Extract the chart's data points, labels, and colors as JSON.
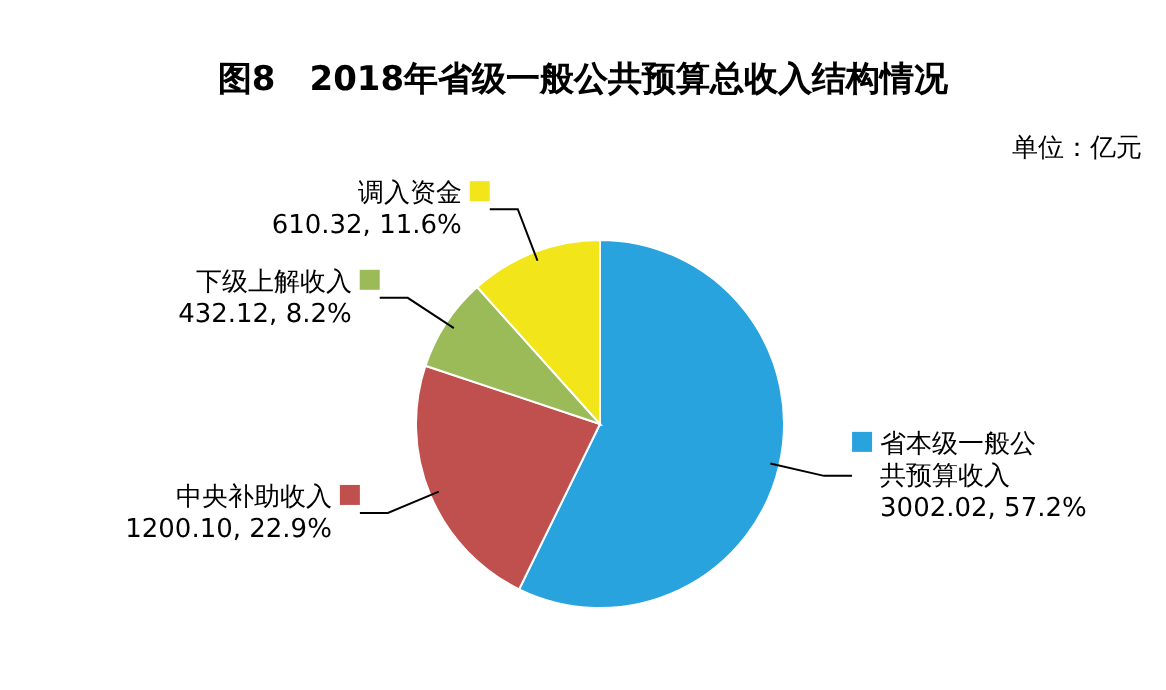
{
  "chart_data": {
    "type": "pie",
    "title": "图8　2018年省级一般公共预算总收入结构情况",
    "annotations": [
      "单位：亿元"
    ],
    "categories": [
      "省本级一般公共预算收入",
      "中央补助收入",
      "下级上解收入",
      "调入资金"
    ],
    "values": [
      3002.02,
      1200.1,
      432.12,
      610.32
    ],
    "value_labels": [
      "3002.02, 57.2%",
      "1200.10, 22.9%",
      "432.12, 8.2%",
      "610.32, 11.6%"
    ],
    "colors": [
      "#29a3de",
      "#c0504d",
      "#9bbb59",
      "#f2e51a"
    ],
    "legend": "left"
  }
}
